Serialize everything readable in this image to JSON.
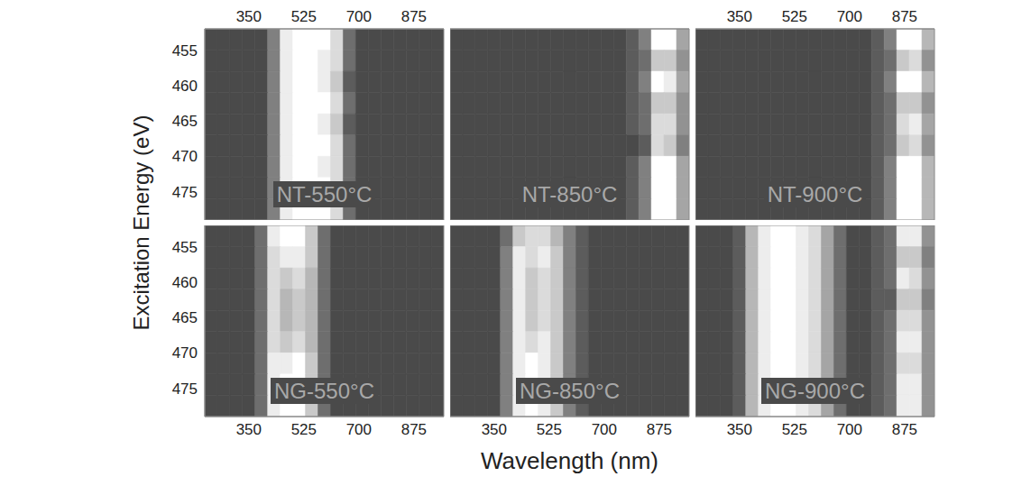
{
  "xlabel": "Wavelength (nm)",
  "ylabel": "Excitation Energy (eV)",
  "chart_data": [
    {
      "type": "heatmap",
      "title": "NT-550°C",
      "xlim": [
        210,
        970
      ],
      "ylim": [
        452,
        479
      ],
      "xticks": [
        350,
        525,
        700,
        875
      ],
      "yticks": [
        455,
        460,
        465,
        470,
        475
      ],
      "tick_labels": true,
      "grid": false,
      "x_bins": [
        210,
        250,
        290,
        330,
        370,
        410,
        450,
        490,
        530,
        570,
        610,
        650,
        690,
        730,
        770,
        810,
        850,
        890,
        930,
        970
      ],
      "y_bins": [
        452,
        455,
        458,
        461,
        464,
        467,
        470,
        473,
        476,
        479
      ],
      "cells": [
        [
          0,
          0,
          0,
          0,
          0,
          3,
          9,
          10,
          10,
          10,
          8,
          2,
          0,
          0,
          0,
          0,
          0,
          0,
          0
        ],
        [
          0,
          0,
          0,
          0,
          0,
          3,
          9,
          10,
          10,
          9,
          8,
          2,
          0,
          0,
          0,
          0,
          0,
          0,
          0
        ],
        [
          0,
          0,
          0,
          0,
          0,
          3,
          9,
          10,
          10,
          9,
          7,
          1,
          0,
          0,
          0,
          0,
          0,
          0,
          0
        ],
        [
          0,
          0,
          0,
          0,
          0,
          3,
          9,
          10,
          10,
          10,
          8,
          2,
          0,
          0,
          0,
          0,
          0,
          0,
          0
        ],
        [
          0,
          0,
          0,
          0,
          0,
          3,
          9,
          10,
          10,
          9,
          7,
          1,
          0,
          0,
          0,
          0,
          0,
          0,
          0
        ],
        [
          0,
          0,
          0,
          0,
          0,
          3,
          9,
          10,
          10,
          10,
          8,
          2,
          0,
          0,
          0,
          0,
          0,
          0,
          0
        ],
        [
          0,
          0,
          0,
          0,
          0,
          3,
          9,
          10,
          10,
          9,
          8,
          2,
          0,
          0,
          0,
          0,
          0,
          0,
          0
        ],
        [
          0,
          0,
          0,
          0,
          0,
          3,
          9,
          10,
          10,
          10,
          8,
          2,
          0,
          0,
          0,
          0,
          0,
          0,
          0
        ],
        [
          0,
          0,
          0,
          0,
          0,
          3,
          9,
          10,
          10,
          10,
          8,
          2,
          0,
          0,
          0,
          0,
          0,
          0,
          0
        ]
      ]
    },
    {
      "type": "heatmap",
      "title": "NT-850°C",
      "xlim": [
        210,
        970
      ],
      "ylim": [
        452,
        479
      ],
      "xticks": [
        350,
        525,
        700,
        875
      ],
      "yticks": [
        455,
        460,
        465,
        470,
        475
      ],
      "tick_labels": false,
      "grid": false,
      "x_bins": [
        210,
        250,
        290,
        330,
        370,
        410,
        450,
        490,
        530,
        570,
        610,
        650,
        690,
        730,
        770,
        810,
        850,
        890,
        930,
        970
      ],
      "y_bins": [
        452,
        455,
        458,
        461,
        464,
        467,
        470,
        473,
        476,
        479
      ],
      "cells": [
        [
          0,
          0,
          0,
          0,
          0,
          0,
          0,
          0,
          0,
          0,
          0,
          0,
          0,
          0,
          1,
          3,
          10,
          10,
          5
        ],
        [
          0,
          0,
          0,
          0,
          0,
          0,
          0,
          0,
          0,
          0,
          0,
          0,
          0,
          0,
          1,
          2,
          7,
          7,
          4
        ],
        [
          0,
          0,
          0,
          0,
          0,
          0,
          0,
          0,
          0,
          0,
          0,
          0,
          0,
          0,
          1,
          3,
          10,
          9,
          5
        ],
        [
          0,
          0,
          0,
          0,
          0,
          0,
          0,
          0,
          0,
          0,
          0,
          0,
          0,
          0,
          1,
          2,
          7,
          7,
          4
        ],
        [
          0,
          0,
          0,
          0,
          0,
          0,
          0,
          0,
          0,
          0,
          0,
          0,
          0,
          0,
          1,
          2,
          8,
          8,
          4
        ],
        [
          0,
          0,
          0,
          0,
          0,
          0,
          0,
          0,
          0,
          0,
          0,
          0,
          0,
          0,
          0,
          1,
          8,
          7,
          3
        ],
        [
          0,
          0,
          0,
          0,
          0,
          0,
          0,
          0,
          0,
          0,
          0,
          0,
          0,
          0,
          1,
          3,
          10,
          10,
          5
        ],
        [
          0,
          0,
          0,
          0,
          0,
          0,
          0,
          0,
          0,
          0,
          0,
          0,
          0,
          0,
          1,
          3,
          10,
          10,
          5
        ],
        [
          0,
          0,
          0,
          0,
          0,
          0,
          0,
          0,
          0,
          0,
          0,
          0,
          0,
          0,
          1,
          3,
          10,
          10,
          5
        ]
      ]
    },
    {
      "type": "heatmap",
      "title": "NT-900°C",
      "xlim": [
        210,
        970
      ],
      "ylim": [
        452,
        479
      ],
      "xticks": [
        350,
        525,
        700,
        875
      ],
      "yticks": [
        455,
        460,
        465,
        470,
        475
      ],
      "tick_labels": "x",
      "grid": false,
      "x_bins": [
        210,
        250,
        290,
        330,
        370,
        410,
        450,
        490,
        530,
        570,
        610,
        650,
        690,
        730,
        770,
        810,
        850,
        890,
        930,
        970
      ],
      "y_bins": [
        452,
        455,
        458,
        461,
        464,
        467,
        470,
        473,
        476,
        479
      ],
      "cells": [
        [
          0,
          0,
          0,
          0,
          0,
          0,
          0,
          0,
          0,
          0,
          0,
          0,
          0,
          0,
          1,
          3,
          10,
          10,
          6
        ],
        [
          0,
          0,
          0,
          0,
          0,
          0,
          0,
          0,
          0,
          0,
          0,
          0,
          0,
          0,
          1,
          2,
          7,
          8,
          4
        ],
        [
          0,
          0,
          0,
          0,
          0,
          0,
          0,
          0,
          0,
          0,
          0,
          0,
          0,
          0,
          1,
          3,
          10,
          10,
          6
        ],
        [
          0,
          0,
          0,
          0,
          0,
          0,
          0,
          0,
          0,
          0,
          0,
          0,
          0,
          0,
          1,
          2,
          7,
          7,
          4
        ],
        [
          0,
          0,
          0,
          0,
          0,
          0,
          0,
          0,
          0,
          0,
          0,
          0,
          0,
          0,
          1,
          2,
          8,
          9,
          5
        ],
        [
          0,
          0,
          0,
          0,
          0,
          0,
          0,
          0,
          0,
          0,
          0,
          0,
          0,
          0,
          1,
          2,
          7,
          8,
          4
        ],
        [
          0,
          0,
          0,
          0,
          0,
          0,
          0,
          0,
          0,
          0,
          0,
          0,
          0,
          0,
          1,
          3,
          10,
          10,
          6
        ],
        [
          0,
          0,
          0,
          0,
          0,
          0,
          0,
          0,
          0,
          0,
          0,
          0,
          0,
          0,
          1,
          3,
          10,
          10,
          6
        ],
        [
          0,
          0,
          0,
          0,
          0,
          0,
          0,
          0,
          0,
          0,
          0,
          0,
          0,
          0,
          1,
          3,
          10,
          10,
          6
        ]
      ]
    },
    {
      "type": "heatmap",
      "title": "NG-550°C",
      "xlim": [
        210,
        970
      ],
      "ylim": [
        452,
        479
      ],
      "xticks": [
        350,
        525,
        700,
        875
      ],
      "yticks": [
        455,
        460,
        465,
        470,
        475
      ],
      "tick_labels": true,
      "grid": false,
      "x_bins": [
        210,
        250,
        290,
        330,
        370,
        410,
        450,
        490,
        530,
        570,
        610,
        650,
        690,
        730,
        770,
        810,
        850,
        890,
        930,
        970
      ],
      "y_bins": [
        452,
        455,
        458,
        461,
        464,
        467,
        470,
        473,
        476,
        479
      ],
      "cells": [
        [
          0,
          0,
          0,
          0,
          2,
          9,
          10,
          10,
          7,
          2,
          0,
          0,
          0,
          0,
          0,
          0,
          0,
          0,
          0
        ],
        [
          0,
          0,
          0,
          0,
          2,
          8,
          9,
          9,
          7,
          2,
          0,
          0,
          0,
          0,
          0,
          0,
          0,
          0,
          0
        ],
        [
          0,
          0,
          0,
          0,
          2,
          8,
          7,
          8,
          6,
          2,
          0,
          0,
          0,
          0,
          0,
          0,
          0,
          0,
          0
        ],
        [
          0,
          0,
          0,
          0,
          2,
          8,
          6,
          7,
          6,
          2,
          0,
          0,
          0,
          0,
          0,
          0,
          0,
          0,
          0
        ],
        [
          0,
          0,
          0,
          0,
          2,
          8,
          6,
          7,
          6,
          2,
          0,
          0,
          0,
          0,
          0,
          0,
          0,
          0,
          0
        ],
        [
          0,
          0,
          0,
          0,
          2,
          8,
          7,
          8,
          6,
          2,
          0,
          0,
          0,
          0,
          0,
          0,
          0,
          0,
          0
        ],
        [
          0,
          0,
          0,
          0,
          2,
          9,
          9,
          10,
          7,
          2,
          0,
          0,
          0,
          0,
          0,
          0,
          0,
          0,
          0
        ],
        [
          0,
          0,
          0,
          0,
          2,
          9,
          10,
          10,
          7,
          2,
          0,
          0,
          0,
          0,
          0,
          0,
          0,
          0,
          0
        ],
        [
          0,
          0,
          0,
          0,
          2,
          9,
          10,
          10,
          7,
          2,
          0,
          0,
          0,
          0,
          0,
          0,
          0,
          0,
          0
        ]
      ]
    },
    {
      "type": "heatmap",
      "title": "NG-850°C",
      "xlim": [
        210,
        970
      ],
      "ylim": [
        452,
        479
      ],
      "xticks": [
        350,
        525,
        700,
        875
      ],
      "yticks": [
        455,
        460,
        465,
        470,
        475
      ],
      "tick_labels": "x",
      "grid": false,
      "x_bins": [
        210,
        250,
        290,
        330,
        370,
        410,
        450,
        490,
        530,
        570,
        610,
        650,
        690,
        730,
        770,
        810,
        850,
        890,
        930,
        970
      ],
      "y_bins": [
        452,
        455,
        458,
        461,
        464,
        467,
        470,
        473,
        476,
        479
      ],
      "cells": [
        [
          0,
          0,
          0,
          0,
          2,
          7,
          8,
          8,
          6,
          3,
          1,
          0,
          0,
          0,
          0,
          0,
          0,
          0,
          0
        ],
        [
          0,
          0,
          0,
          0,
          3,
          9,
          8,
          9,
          7,
          3,
          1,
          0,
          0,
          0,
          0,
          0,
          0,
          0,
          0
        ],
        [
          0,
          0,
          0,
          0,
          3,
          9,
          7,
          8,
          7,
          3,
          1,
          0,
          0,
          0,
          0,
          0,
          0,
          0,
          0
        ],
        [
          0,
          0,
          0,
          0,
          3,
          9,
          7,
          8,
          7,
          3,
          1,
          0,
          0,
          0,
          0,
          0,
          0,
          0,
          0
        ],
        [
          0,
          0,
          0,
          0,
          3,
          9,
          7,
          8,
          7,
          3,
          1,
          0,
          0,
          0,
          0,
          0,
          0,
          0,
          0
        ],
        [
          0,
          0,
          0,
          0,
          3,
          9,
          8,
          9,
          7,
          3,
          1,
          0,
          0,
          0,
          0,
          0,
          0,
          0,
          0
        ],
        [
          0,
          0,
          0,
          0,
          3,
          9,
          10,
          9,
          7,
          3,
          1,
          0,
          0,
          0,
          0,
          0,
          0,
          0,
          0
        ],
        [
          0,
          0,
          0,
          0,
          3,
          9,
          10,
          9,
          7,
          3,
          1,
          0,
          0,
          0,
          0,
          0,
          0,
          0,
          0
        ],
        [
          0,
          0,
          0,
          0,
          3,
          9,
          10,
          9,
          7,
          3,
          1,
          0,
          0,
          0,
          0,
          0,
          0,
          0,
          0
        ]
      ]
    },
    {
      "type": "heatmap",
      "title": "NG-900°C",
      "xlim": [
        210,
        970
      ],
      "ylim": [
        452,
        479
      ],
      "xticks": [
        350,
        525,
        700,
        875
      ],
      "yticks": [
        455,
        460,
        465,
        470,
        475
      ],
      "tick_labels": "x",
      "grid": false,
      "x_bins": [
        210,
        250,
        290,
        330,
        370,
        410,
        450,
        490,
        530,
        570,
        610,
        650,
        690,
        730,
        770,
        810,
        850,
        890,
        930,
        970
      ],
      "y_bins": [
        452,
        455,
        458,
        461,
        464,
        467,
        470,
        473,
        476,
        479
      ],
      "cells": [
        [
          0,
          0,
          0,
          1,
          6,
          9,
          10,
          10,
          9,
          8,
          5,
          2,
          0,
          0,
          1,
          2,
          9,
          9,
          4
        ],
        [
          0,
          0,
          0,
          1,
          6,
          9,
          10,
          10,
          9,
          8,
          5,
          2,
          0,
          0,
          1,
          2,
          7,
          7,
          3
        ],
        [
          0,
          0,
          0,
          1,
          6,
          9,
          10,
          10,
          9,
          8,
          5,
          2,
          0,
          0,
          1,
          2,
          9,
          8,
          4
        ],
        [
          0,
          0,
          0,
          1,
          6,
          9,
          10,
          10,
          9,
          8,
          5,
          2,
          0,
          0,
          1,
          1,
          7,
          7,
          3
        ],
        [
          0,
          0,
          0,
          1,
          6,
          9,
          10,
          10,
          9,
          8,
          5,
          2,
          0,
          0,
          1,
          2,
          8,
          8,
          4
        ],
        [
          0,
          0,
          0,
          1,
          6,
          9,
          10,
          10,
          9,
          8,
          5,
          2,
          0,
          0,
          1,
          2,
          9,
          9,
          4
        ],
        [
          0,
          0,
          0,
          1,
          6,
          9,
          10,
          10,
          9,
          8,
          5,
          2,
          0,
          0,
          1,
          2,
          8,
          8,
          4
        ],
        [
          0,
          0,
          0,
          1,
          6,
          9,
          10,
          10,
          9,
          8,
          5,
          2,
          0,
          0,
          1,
          2,
          9,
          9,
          4
        ],
        [
          0,
          0,
          0,
          1,
          6,
          9,
          10,
          10,
          9,
          8,
          5,
          2,
          0,
          0,
          1,
          2,
          9,
          9,
          4
        ]
      ]
    }
  ]
}
